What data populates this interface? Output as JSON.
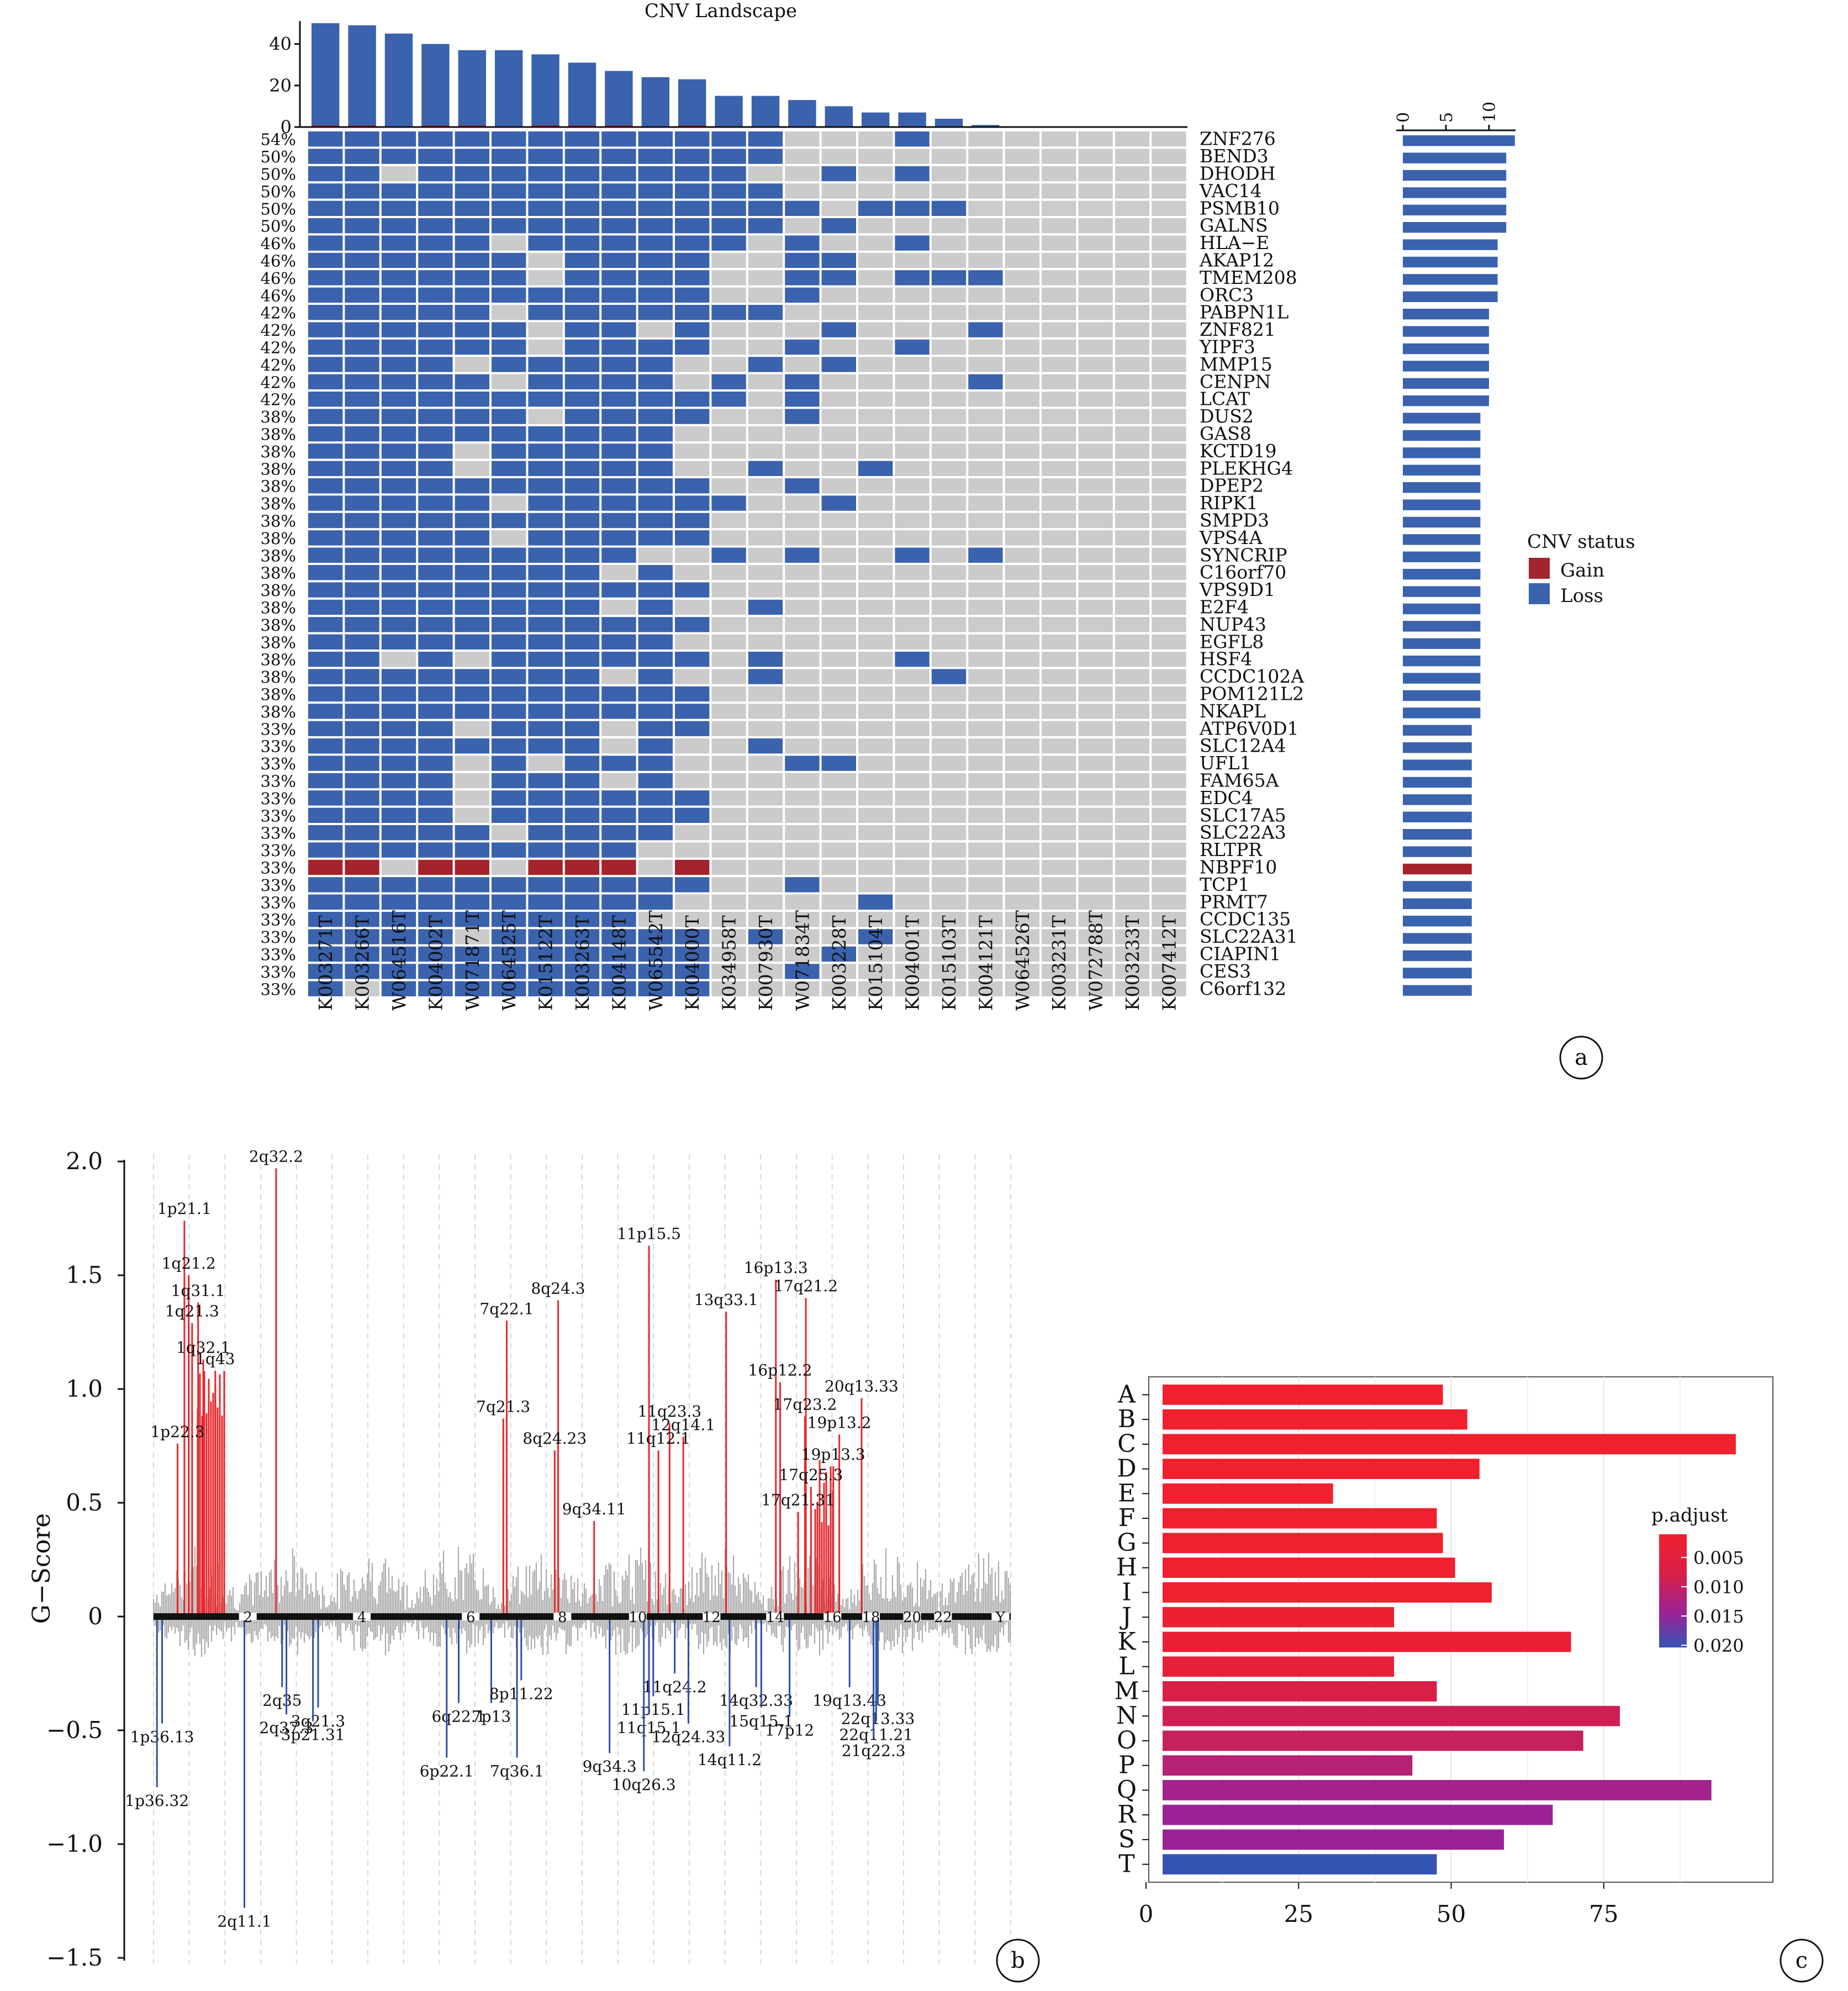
{
  "panels": [
    "a",
    "b",
    "c"
  ],
  "colors": {
    "gain": "#a5232d",
    "loss": "#3a62ad",
    "neutral": "#cbcbcb",
    "track": "#ababab",
    "axis": "#111111"
  },
  "chart_data": [
    {
      "type": "heatmap",
      "title": "CNV Landscape",
      "samples": [
        "K003271T",
        "K003266T",
        "W064516T",
        "K004002T",
        "W071871T",
        "W064525T",
        "K015122T",
        "K003263T",
        "K004148T",
        "W065542T",
        "K004000T",
        "K034958T",
        "K007930T",
        "W071834T",
        "K003228T",
        "K015104T",
        "K004001T",
        "K015103T",
        "K004121T",
        "W064526T",
        "K003231T",
        "W072788T",
        "K003233T",
        "K007412T"
      ],
      "sample_totals": [
        50,
        49,
        45,
        40,
        37,
        37,
        35,
        31,
        27,
        24,
        23,
        15,
        15,
        13,
        10,
        7,
        7,
        4,
        1,
        0,
        0,
        0,
        0,
        0
      ],
      "sample_totals_gain": [
        1,
        1,
        0,
        1,
        1,
        0,
        1,
        1,
        1,
        0,
        1,
        0,
        0,
        0,
        0,
        0,
        0,
        0,
        0,
        0,
        0,
        0,
        0,
        0
      ],
      "top_axis": {
        "ticks": [
          "0",
          "20",
          "40"
        ],
        "ylim": [
          0,
          50
        ]
      },
      "genes": [
        "ZNF276",
        "BEND3",
        "DHODH",
        "VAC14",
        "PSMB10",
        "GALNS",
        "HLA−E",
        "AKAP12",
        "TMEM208",
        "ORC3",
        "PABPN1L",
        "ZNF821",
        "YIPF3",
        "MMP15",
        "CENPN",
        "LCAT",
        "DUS2",
        "GAS8",
        "KCTD19",
        "PLEKHG4",
        "DPEP2",
        "RIPK1",
        "SMPD3",
        "VPS4A",
        "SYNCRIP",
        "C16orf70",
        "VPS9D1",
        "E2F4",
        "NUP43",
        "EGFL8",
        "HSF4",
        "CCDC102A",
        "POM121L2",
        "NKAPL",
        "ATP6V0D1",
        "SLC12A4",
        "UFL1",
        "FAM65A",
        "EDC4",
        "SLC17A5",
        "SLC22A3",
        "RLTPR",
        "NBPF10",
        "TCP1",
        "PRMT7",
        "CCDC135",
        "SLC22A31",
        "CIAPIN1",
        "CES3",
        "C6orf132"
      ],
      "percentages": [
        "54%",
        "50%",
        "50%",
        "50%",
        "50%",
        "50%",
        "46%",
        "46%",
        "46%",
        "46%",
        "42%",
        "42%",
        "42%",
        "42%",
        "42%",
        "42%",
        "38%",
        "38%",
        "38%",
        "38%",
        "38%",
        "38%",
        "38%",
        "38%",
        "38%",
        "38%",
        "38%",
        "38%",
        "38%",
        "38%",
        "38%",
        "38%",
        "38%",
        "38%",
        "33%",
        "33%",
        "33%",
        "33%",
        "33%",
        "33%",
        "33%",
        "33%",
        "33%",
        "33%",
        "33%",
        "33%",
        "33%",
        "33%",
        "33%",
        "33%"
      ],
      "gene_counts": [
        13,
        12,
        12,
        12,
        12,
        12,
        11,
        11,
        11,
        11,
        10,
        10,
        10,
        10,
        10,
        10,
        9,
        9,
        9,
        9,
        9,
        9,
        9,
        9,
        9,
        9,
        9,
        9,
        9,
        9,
        9,
        9,
        9,
        9,
        8,
        8,
        8,
        8,
        8,
        8,
        8,
        8,
        8,
        8,
        8,
        8,
        8,
        8,
        8,
        8
      ],
      "gene_count_type": [
        "L",
        "L",
        "L",
        "L",
        "L",
        "L",
        "L",
        "L",
        "L",
        "L",
        "L",
        "L",
        "L",
        "L",
        "L",
        "L",
        "L",
        "L",
        "L",
        "L",
        "L",
        "L",
        "L",
        "L",
        "L",
        "L",
        "L",
        "L",
        "L",
        "L",
        "L",
        "L",
        "L",
        "L",
        "L",
        "L",
        "L",
        "L",
        "L",
        "L",
        "L",
        "L",
        "G",
        "L",
        "L",
        "L",
        "L",
        "L",
        "L",
        "L"
      ],
      "right_axis": {
        "ticks": [
          "0",
          "5",
          "10"
        ],
        "xlim": [
          0,
          13
        ]
      },
      "matrix": [
        "LLLLLLLLLLLLL...L.......",
        "LLLLLLLLLLLLL...........",
        "LL.LLLLLLLLL..L.L.......",
        "LLLLLLLLLLLLL...........",
        "LLLLLLLLLLLLLL.LLL......",
        "LLLLLLLLLLLLL.L.........",
        "LLLLL.LLLLLL.L..L.......",
        "LLLLLL.LLLL..LL.........",
        "LLLLLL.LLLL..LL.LLL.....",
        "LLLLLLLLLLL..L..........",
        "LLLLL.LLLLLLL...........",
        "LLLLLL.LL.L...L...L.....",
        "LLLLLL.LLLL..L..L.......",
        "LLLL.LLLLL..L.L.........",
        "LLLLL.LLLL.L.L....L.....",
        "LLLLLLLLLLLL.L..........",
        "LLLLLL.LLLL..L..........",
        "LLLLLLLLLL..............",
        "LLLL.LLLLL..............",
        "LLLL.LLLLL..L..L........",
        "LLLLLLLLLLL..L..........",
        "LLLLL.LLLLLL..L.........",
        "LLLLLLLLLLL.............",
        "LLLLL.LLLLL.............",
        "LLLLLLLLL..L.L..L.L.....",
        "LLLLLLLL.L..............",
        "LLLLLLLLLLL.............",
        "LLLLLLLL.L..L...........",
        "LLLLLLLLLLL.............",
        "LLLLLLLLLL..............",
        "LL.L.LLLLLL.L...L.......",
        "LLLLLLLL.L..L....L......",
        "LLLLLLLLLLL.............",
        "LLLLLLLLLLL.............",
        "LLLL.LLL.LL.............",
        "LLLLLLLL.L..L...........",
        "LLLL.L.LLL...LL.........",
        "LLLL.LLL.L..............",
        "LLLL.LLLLLL.............",
        "LLLL.LLLLLL.............",
        "LLLLL.LLLL..............",
        "LLLLLLLLL...............",
        "GG.GG.GGG.G.............",
        "LLLLLLLLLLL..L..........",
        "LLLLLLLLLL.....L........",
        "LLLLLLLLL...............",
        "LLLL.LLLLLL.L..L........",
        "LLLLLLLLLLL...L.........",
        "LLLLLLLLLLL..L..........",
        "L.LLLLLLLLL............."
      ],
      "legend": {
        "title": "CNV status",
        "items": [
          {
            "name": "Gain",
            "key": "gain"
          },
          {
            "name": "Loss",
            "key": "loss"
          }
        ]
      }
    },
    {
      "type": "line",
      "ylabel": "G−Score",
      "ylim": [
        -1.5,
        2.0
      ],
      "yticks": [
        "2.0",
        "1.5",
        "1.0",
        "0.5",
        "0",
        "−0.5",
        "−1.0",
        "−1.5"
      ],
      "chromosomes": [
        "2",
        "4",
        "6",
        "8",
        "10",
        "12",
        "14",
        "16",
        "18",
        "20",
        "22",
        "Y"
      ],
      "chrom_positions": [
        0.11,
        0.243,
        0.37,
        0.477,
        0.565,
        0.651,
        0.725,
        0.792,
        0.837,
        0.885,
        0.921,
        0.988
      ],
      "bands": [
        {
          "label": "2q32.2",
          "x": 0.143,
          "g": 1.97,
          "type": "amp"
        },
        {
          "label": "1p21.1",
          "x": 0.036,
          "g": 1.74,
          "type": "amp"
        },
        {
          "label": "1q21.2",
          "x": 0.041,
          "g": 1.5,
          "type": "amp"
        },
        {
          "label": "1q31.1",
          "x": 0.052,
          "g": 1.38,
          "type": "amp"
        },
        {
          "label": "1q21.3",
          "x": 0.045,
          "g": 1.29,
          "type": "amp"
        },
        {
          "label": "1q32.1",
          "x": 0.058,
          "g": 1.13,
          "type": "amp"
        },
        {
          "label": "1q43",
          "x": 0.072,
          "g": 1.08,
          "type": "amp"
        },
        {
          "label": "1p22.3",
          "x": 0.028,
          "g": 0.76,
          "type": "amp"
        },
        {
          "label": "11p15.5",
          "x": 0.578,
          "g": 1.63,
          "type": "amp"
        },
        {
          "label": "8q24.3",
          "x": 0.472,
          "g": 1.39,
          "type": "amp"
        },
        {
          "label": "7q22.1",
          "x": 0.412,
          "g": 1.3,
          "type": "amp"
        },
        {
          "label": "7q21.3",
          "x": 0.408,
          "g": 0.87,
          "type": "amp"
        },
        {
          "label": "8q24.23",
          "x": 0.468,
          "g": 0.73,
          "type": "amp"
        },
        {
          "label": "9q34.11",
          "x": 0.514,
          "g": 0.42,
          "type": "amp"
        },
        {
          "label": "13q33.1",
          "x": 0.668,
          "g": 1.34,
          "type": "amp"
        },
        {
          "label": "11q23.3",
          "x": 0.602,
          "g": 0.85,
          "type": "amp"
        },
        {
          "label": "12q14.1",
          "x": 0.618,
          "g": 0.79,
          "type": "amp"
        },
        {
          "label": "11q12.1",
          "x": 0.589,
          "g": 0.73,
          "type": "amp"
        },
        {
          "label": "16p13.3",
          "x": 0.726,
          "g": 1.48,
          "type": "amp"
        },
        {
          "label": "17q21.2",
          "x": 0.761,
          "g": 1.4,
          "type": "amp"
        },
        {
          "label": "16p12.2",
          "x": 0.731,
          "g": 1.03,
          "type": "amp"
        },
        {
          "label": "17q23.2",
          "x": 0.76,
          "g": 0.88,
          "type": "amp"
        },
        {
          "label": "19p13.2",
          "x": 0.8,
          "g": 0.8,
          "type": "amp"
        },
        {
          "label": "20q13.33",
          "x": 0.826,
          "g": 0.96,
          "type": "amp"
        },
        {
          "label": "19p13.3",
          "x": 0.793,
          "g": 0.66,
          "type": "amp"
        },
        {
          "label": "17q25.3",
          "x": 0.767,
          "g": 0.57,
          "type": "amp"
        },
        {
          "label": "17q21.31",
          "x": 0.752,
          "g": 0.46,
          "type": "amp"
        },
        {
          "label": "1p36.13",
          "x": 0.01,
          "g": -0.47,
          "type": "del"
        },
        {
          "label": "1p36.32",
          "x": 0.004,
          "g": -0.75,
          "type": "del"
        },
        {
          "label": "2q11.1",
          "x": 0.106,
          "g": -1.28,
          "type": "del"
        },
        {
          "label": "2q35",
          "x": 0.15,
          "g": -0.31,
          "type": "del"
        },
        {
          "label": "2q37.3",
          "x": 0.155,
          "g": -0.43,
          "type": "del"
        },
        {
          "label": "3q21.3",
          "x": 0.192,
          "g": -0.4,
          "type": "del"
        },
        {
          "label": "3p21.31",
          "x": 0.186,
          "g": -0.46,
          "type": "del"
        },
        {
          "label": "6q22.1",
          "x": 0.356,
          "g": -0.38,
          "type": "del"
        },
        {
          "label": "6p22.1",
          "x": 0.342,
          "g": -0.62,
          "type": "del"
        },
        {
          "label": "7p13",
          "x": 0.394,
          "g": -0.38,
          "type": "del"
        },
        {
          "label": "8p11.22",
          "x": 0.429,
          "g": -0.28,
          "type": "del"
        },
        {
          "label": "7q36.1",
          "x": 0.424,
          "g": -0.62,
          "type": "del"
        },
        {
          "label": "11p15.1",
          "x": 0.583,
          "g": -0.35,
          "type": "del"
        },
        {
          "label": "11q24.2",
          "x": 0.608,
          "g": -0.25,
          "type": "del"
        },
        {
          "label": "11q15.1",
          "x": 0.578,
          "g": -0.43,
          "type": "del"
        },
        {
          "label": "9q34.3",
          "x": 0.532,
          "g": -0.6,
          "type": "del"
        },
        {
          "label": "10q26.3",
          "x": 0.572,
          "g": -0.68,
          "type": "del"
        },
        {
          "label": "12q24.33",
          "x": 0.624,
          "g": -0.47,
          "type": "del"
        },
        {
          "label": "14q32.33",
          "x": 0.703,
          "g": -0.31,
          "type": "del"
        },
        {
          "label": "15q15.1",
          "x": 0.709,
          "g": -0.4,
          "type": "del"
        },
        {
          "label": "14q11.2",
          "x": 0.672,
          "g": -0.57,
          "type": "del"
        },
        {
          "label": "17p12",
          "x": 0.742,
          "g": -0.44,
          "type": "del"
        },
        {
          "label": "19q13.43",
          "x": 0.812,
          "g": -0.31,
          "type": "del"
        },
        {
          "label": "22q13.33",
          "x": 0.845,
          "g": -0.39,
          "type": "del"
        },
        {
          "label": "22q11.21",
          "x": 0.843,
          "g": -0.46,
          "type": "del"
        },
        {
          "label": "21q22.3",
          "x": 0.84,
          "g": -0.53,
          "type": "del"
        }
      ]
    },
    {
      "type": "bar",
      "categories": [
        "A",
        "B",
        "C",
        "D",
        "E",
        "F",
        "G",
        "H",
        "I",
        "J",
        "K",
        "L",
        "M",
        "N",
        "O",
        "P",
        "Q",
        "R",
        "S",
        "T"
      ],
      "values": [
        50,
        54,
        98,
        56,
        32,
        49,
        50,
        52,
        58,
        42,
        71,
        42,
        49,
        79,
        73,
        45,
        94,
        68,
        60,
        49
      ],
      "padj": [
        0.002,
        0.002,
        0.002,
        0.002,
        0.002,
        0.002,
        0.002,
        0.002,
        0.002,
        0.003,
        0.004,
        0.005,
        0.009,
        0.01,
        0.011,
        0.013,
        0.015,
        0.016,
        0.016,
        0.022
      ],
      "xlim": [
        0,
        100
      ],
      "xticks": [
        "0",
        "25",
        "50",
        "75"
      ],
      "legend": {
        "title": "p.adjust",
        "ticks": [
          "0.005",
          "0.010",
          "0.015",
          "0.020"
        ]
      }
    }
  ]
}
